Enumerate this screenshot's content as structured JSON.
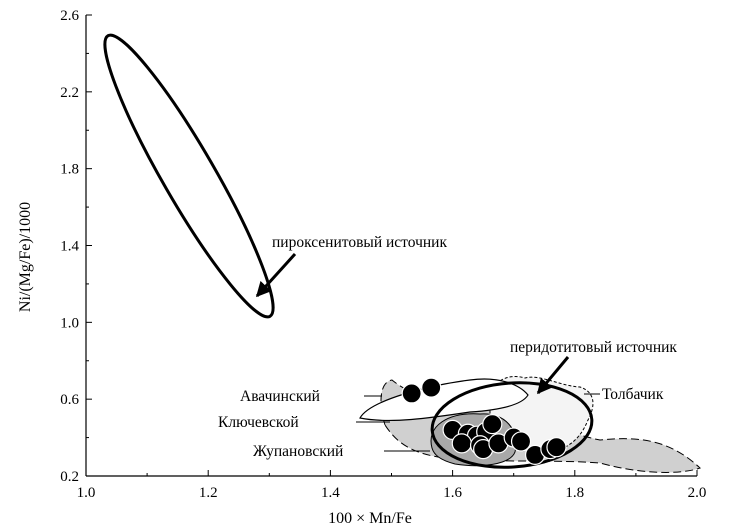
{
  "chart_data": {
    "type": "scatter",
    "title": "",
    "xlabel": "100 × Mn/Fe",
    "ylabel": "Ni/(Mg/Fe)/1000",
    "xlim": [
      1.0,
      2.0
    ],
    "ylim": [
      0.2,
      2.6
    ],
    "x_ticks": [
      1.0,
      1.2,
      1.4,
      1.6,
      1.8,
      2.0
    ],
    "x_tick_labels": [
      "1.0",
      "1.2",
      "1.4",
      "1.6",
      "1.8",
      "2.0"
    ],
    "y_ticks": [
      0.2,
      0.6,
      1.0,
      1.4,
      1.8,
      2.2,
      2.6
    ],
    "y_tick_labels": [
      "0.2",
      "0.6",
      "1.0",
      "1.4",
      "1.8",
      "2.2",
      "2.6"
    ],
    "grid": false,
    "points": [
      {
        "x": 1.533,
        "y": 0.63
      },
      {
        "x": 1.565,
        "y": 0.66
      },
      {
        "x": 1.6,
        "y": 0.44
      },
      {
        "x": 1.625,
        "y": 0.42
      },
      {
        "x": 1.64,
        "y": 0.41
      },
      {
        "x": 1.655,
        "y": 0.43
      },
      {
        "x": 1.665,
        "y": 0.47
      },
      {
        "x": 1.615,
        "y": 0.37
      },
      {
        "x": 1.645,
        "y": 0.36
      },
      {
        "x": 1.65,
        "y": 0.34
      },
      {
        "x": 1.675,
        "y": 0.37
      },
      {
        "x": 1.7,
        "y": 0.4
      },
      {
        "x": 1.712,
        "y": 0.38
      },
      {
        "x": 1.735,
        "y": 0.31
      },
      {
        "x": 1.76,
        "y": 0.34
      },
      {
        "x": 1.77,
        "y": 0.35
      }
    ],
    "annotations": {
      "pyroxenite": "пироксенитовый источник",
      "peridotite": "перидотитовый источник",
      "tolbachik": "Толбачик",
      "avachinsky": "Авачинский",
      "klyuchevskoy": "Ключевской",
      "zhupanovsky": "Жупановский"
    }
  }
}
